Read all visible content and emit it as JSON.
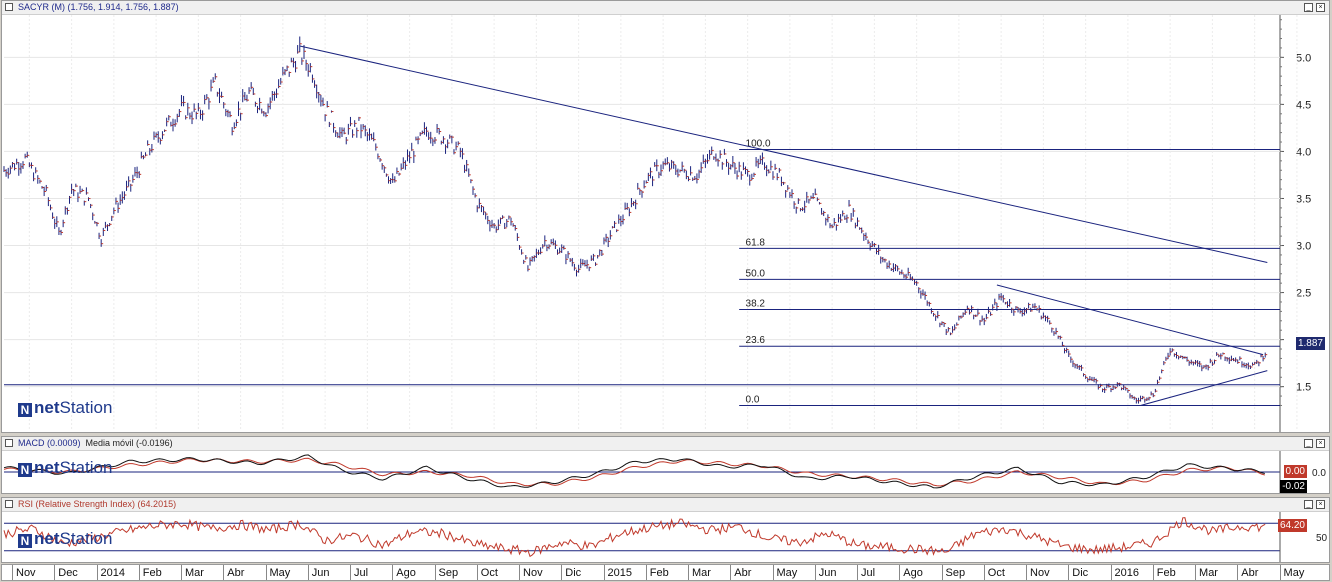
{
  "main_panel": {
    "title": "SACYR (M) (1.756, 1.914, 1.756, 1.887)",
    "logo_brand": "net",
    "logo_suffix": "Station",
    "last_price_tag": "1.887",
    "colors": {
      "bars": "#1a237e",
      "lines": "#1a237e",
      "tag_bg": "#1f2a6e"
    }
  },
  "macd_panel": {
    "title": "MACD (0.0009)",
    "subtitle": "Media móvil (-0.0196)",
    "tag_macd": "0.00",
    "tag_signal": "-0.02",
    "axis_label": "0.0",
    "colors": {
      "macd": "#111111",
      "signal": "#c0392b"
    }
  },
  "rsi_panel": {
    "title": "RSI (Relative Strength Index) (64.2015)",
    "tag": "64.20",
    "axis_label": "50",
    "colors": {
      "rsi": "#c0392b"
    }
  },
  "x_axis": {
    "months": [
      "Nov",
      "Dec",
      "2014",
      "Feb",
      "Mar",
      "Abr",
      "May",
      "Jun",
      "Jul",
      "Ago",
      "Sep",
      "Oct",
      "Nov",
      "Dic",
      "2015",
      "Feb",
      "Mar",
      "Abr",
      "May",
      "Jun",
      "Jul",
      "Ago",
      "Sep",
      "Oct",
      "Nov",
      "Dic",
      "2016",
      "Feb",
      "Mar",
      "Abr",
      "May"
    ]
  },
  "chart_data": {
    "type": "line",
    "price_axis": {
      "ylim": [
        1.05,
        5.45
      ],
      "ticks": [
        "5.0",
        "4.5",
        "4.0",
        "3.5",
        "3.0",
        "2.5",
        "2.0",
        "1.5"
      ]
    },
    "fibonacci_levels": [
      {
        "label": "100.0",
        "value": 4.02
      },
      {
        "label": "61.8",
        "value": 2.97
      },
      {
        "label": "50.0",
        "value": 2.64
      },
      {
        "label": "38.2",
        "value": 2.32
      },
      {
        "label": "23.6",
        "value": 1.93
      },
      {
        "label": "0.0",
        "value": 1.3
      }
    ],
    "support_level": 1.52,
    "trendlines": [
      {
        "from": [
          7.0,
          5.12
        ],
        "to": [
          29.9,
          2.82
        ]
      },
      {
        "from": [
          23.5,
          2.58
        ],
        "to": [
          29.8,
          1.84
        ]
      },
      {
        "from": [
          26.9,
          1.3
        ],
        "to": [
          29.9,
          1.67
        ]
      }
    ],
    "price_series": [
      [
        0.0,
        3.8
      ],
      [
        0.5,
        3.92
      ],
      [
        1.0,
        3.55
      ],
      [
        1.3,
        3.12
      ],
      [
        1.6,
        3.6
      ],
      [
        2.0,
        3.5
      ],
      [
        2.3,
        3.08
      ],
      [
        2.6,
        3.38
      ],
      [
        3.0,
        3.65
      ],
      [
        3.4,
        4.0
      ],
      [
        3.8,
        4.25
      ],
      [
        4.2,
        4.45
      ],
      [
        4.6,
        4.38
      ],
      [
        5.0,
        4.72
      ],
      [
        5.4,
        4.3
      ],
      [
        5.8,
        4.62
      ],
      [
        6.2,
        4.45
      ],
      [
        6.6,
        4.78
      ],
      [
        7.0,
        5.05
      ],
      [
        7.3,
        4.85
      ],
      [
        7.6,
        4.45
      ],
      [
        8.0,
        4.15
      ],
      [
        8.4,
        4.28
      ],
      [
        8.8,
        4.05
      ],
      [
        9.2,
        3.65
      ],
      [
        9.6,
        3.95
      ],
      [
        10.0,
        4.22
      ],
      [
        10.4,
        4.15
      ],
      [
        10.8,
        4.0
      ],
      [
        11.2,
        3.45
      ],
      [
        11.6,
        3.2
      ],
      [
        12.0,
        3.28
      ],
      [
        12.4,
        2.75
      ],
      [
        12.8,
        3.05
      ],
      [
        13.2,
        2.95
      ],
      [
        13.6,
        2.75
      ],
      [
        14.0,
        2.85
      ],
      [
        14.4,
        3.15
      ],
      [
        14.8,
        3.4
      ],
      [
        15.2,
        3.7
      ],
      [
        15.6,
        3.85
      ],
      [
        16.0,
        3.8
      ],
      [
        16.4,
        3.75
      ],
      [
        16.8,
        4.0
      ],
      [
        17.2,
        3.85
      ],
      [
        17.6,
        3.75
      ],
      [
        18.0,
        3.88
      ],
      [
        18.4,
        3.72
      ],
      [
        18.8,
        3.42
      ],
      [
        19.2,
        3.48
      ],
      [
        19.6,
        3.2
      ],
      [
        20.0,
        3.38
      ],
      [
        20.4,
        3.1
      ],
      [
        20.8,
        2.85
      ],
      [
        21.2,
        2.72
      ],
      [
        21.6,
        2.6
      ],
      [
        22.0,
        2.3
      ],
      [
        22.4,
        2.05
      ],
      [
        22.8,
        2.35
      ],
      [
        23.2,
        2.2
      ],
      [
        23.6,
        2.45
      ],
      [
        24.0,
        2.3
      ],
      [
        24.4,
        2.35
      ],
      [
        24.8,
        2.15
      ],
      [
        25.2,
        1.82
      ],
      [
        25.6,
        1.62
      ],
      [
        26.0,
        1.48
      ],
      [
        26.4,
        1.52
      ],
      [
        26.8,
        1.35
      ],
      [
        27.2,
        1.42
      ],
      [
        27.6,
        1.9
      ],
      [
        28.0,
        1.78
      ],
      [
        28.4,
        1.7
      ],
      [
        28.8,
        1.85
      ],
      [
        29.2,
        1.78
      ],
      [
        29.6,
        1.72
      ],
      [
        29.9,
        1.89
      ]
    ],
    "macd_series": {
      "macd": [
        [
          0,
          0.05
        ],
        [
          1.5,
          -0.02
        ],
        [
          3,
          0.12
        ],
        [
          4.5,
          0.15
        ],
        [
          6,
          0.1
        ],
        [
          7.2,
          0.18
        ],
        [
          8,
          0.02
        ],
        [
          9,
          -0.08
        ],
        [
          10,
          0.05
        ],
        [
          11,
          -0.08
        ],
        [
          12,
          -0.18
        ],
        [
          13,
          -0.12
        ],
        [
          14,
          -0.02
        ],
        [
          15,
          0.12
        ],
        [
          16,
          0.15
        ],
        [
          17,
          0.06
        ],
        [
          18,
          0.08
        ],
        [
          19,
          -0.08
        ],
        [
          20,
          -0.05
        ],
        [
          21,
          -0.12
        ],
        [
          22,
          -0.18
        ],
        [
          23,
          -0.05
        ],
        [
          24,
          0.04
        ],
        [
          25,
          -0.12
        ],
        [
          26,
          -0.15
        ],
        [
          27,
          -0.06
        ],
        [
          28,
          0.08
        ],
        [
          29,
          0.04
        ],
        [
          29.9,
          0.0
        ]
      ],
      "signal": [
        [
          0,
          0.03
        ],
        [
          1.5,
          0.0
        ],
        [
          3,
          0.08
        ],
        [
          4.5,
          0.14
        ],
        [
          6,
          0.12
        ],
        [
          7.2,
          0.14
        ],
        [
          8,
          0.08
        ],
        [
          9,
          -0.03
        ],
        [
          10,
          0.0
        ],
        [
          11,
          -0.04
        ],
        [
          12,
          -0.14
        ],
        [
          13,
          -0.14
        ],
        [
          14,
          -0.06
        ],
        [
          15,
          0.06
        ],
        [
          16,
          0.13
        ],
        [
          17,
          0.1
        ],
        [
          18,
          0.07
        ],
        [
          19,
          -0.02
        ],
        [
          20,
          -0.05
        ],
        [
          21,
          -0.09
        ],
        [
          22,
          -0.15
        ],
        [
          23,
          -0.1
        ],
        [
          24,
          0.0
        ],
        [
          25,
          -0.06
        ],
        [
          26,
          -0.14
        ],
        [
          27,
          -0.1
        ],
        [
          28,
          0.02
        ],
        [
          29,
          0.05
        ],
        [
          29.9,
          -0.02
        ]
      ]
    },
    "rsi_levels": [
      70,
      30
    ],
    "rsi_series": [
      [
        0,
        55
      ],
      [
        0.7,
        62
      ],
      [
        1.4,
        40
      ],
      [
        2.1,
        48
      ],
      [
        2.8,
        58
      ],
      [
        3.5,
        66
      ],
      [
        4.2,
        70
      ],
      [
        4.9,
        62
      ],
      [
        5.6,
        68
      ],
      [
        6.3,
        60
      ],
      [
        7.0,
        70
      ],
      [
        7.6,
        45
      ],
      [
        8.3,
        52
      ],
      [
        9.0,
        38
      ],
      [
        9.7,
        58
      ],
      [
        10.4,
        55
      ],
      [
        11.1,
        40
      ],
      [
        11.8,
        33
      ],
      [
        12.5,
        28
      ],
      [
        13.2,
        42
      ],
      [
        13.9,
        36
      ],
      [
        14.6,
        55
      ],
      [
        15.3,
        64
      ],
      [
        16.0,
        70
      ],
      [
        16.7,
        60
      ],
      [
        17.4,
        65
      ],
      [
        18.1,
        48
      ],
      [
        18.8,
        42
      ],
      [
        19.5,
        55
      ],
      [
        20.2,
        38
      ],
      [
        20.9,
        35
      ],
      [
        21.6,
        32
      ],
      [
        22.3,
        28
      ],
      [
        23.0,
        55
      ],
      [
        23.7,
        62
      ],
      [
        24.4,
        50
      ],
      [
        25.1,
        36
      ],
      [
        25.8,
        31
      ],
      [
        26.5,
        35
      ],
      [
        27.2,
        42
      ],
      [
        27.9,
        74
      ],
      [
        28.6,
        58
      ],
      [
        29.3,
        66
      ],
      [
        29.9,
        64
      ]
    ]
  }
}
